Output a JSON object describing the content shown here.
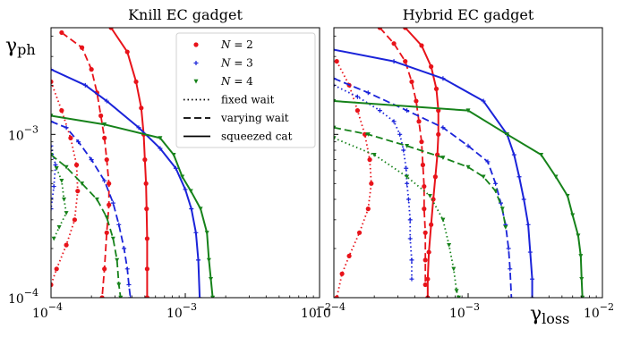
{
  "chart_data": [
    {
      "type": "line",
      "title": "Knill EC gadget",
      "xlabel": "",
      "ylabel": "γ",
      "ylabel_sub": "ph",
      "xscale": "log",
      "yscale": "log",
      "xlim": [
        0.0001,
        0.01
      ],
      "ylim": [
        0.0001,
        0.0045
      ],
      "x_ticks": [
        "10",
        "10",
        "10"
      ],
      "x_tick_exps": [
        "−4",
        "−3",
        "−2"
      ],
      "y_ticks": [
        "10",
        "10"
      ],
      "y_tick_exps": [
        "−4",
        "−3"
      ],
      "legend": {
        "placement": "top-right",
        "entries": [
          {
            "label_main": "N",
            "label_rest": " = 2",
            "color": "#e8131a",
            "marker": "dot"
          },
          {
            "label_main": "N",
            "label_rest": " = 3",
            "color": "#1a23d9",
            "marker": "plus"
          },
          {
            "label_main": "N",
            "label_rest": " = 4",
            "color": "#16821a",
            "marker": "star"
          },
          {
            "label": "fixed wait",
            "dash": "dotted"
          },
          {
            "label": "varying wait",
            "dash": "dashed"
          },
          {
            "label": "squeezed cat",
            "dash": "solid"
          }
        ]
      },
      "series": [
        {
          "N": 2,
          "style": "squeezed cat",
          "dash": "solid",
          "color": "#e8131a",
          "marker": "dot",
          "points": [
            [
              0.00028,
              0.0045
            ],
            [
              0.00037,
              0.0032
            ],
            [
              0.00043,
              0.0021
            ],
            [
              0.00047,
              0.00145
            ],
            [
              0.00049,
              0.001
            ],
            [
              0.0005,
              0.0007
            ],
            [
              0.00051,
              0.0005
            ],
            [
              0.000515,
              0.00035
            ],
            [
              0.00052,
              0.00023
            ],
            [
              0.00052,
              0.00015
            ],
            [
              0.00052,
              0.0001
            ]
          ]
        },
        {
          "N": 2,
          "style": "varying wait",
          "dash": "dashed",
          "color": "#e8131a",
          "marker": "dot",
          "points": [
            [
              0.00012,
              0.0042
            ],
            [
              0.00017,
              0.0034
            ],
            [
              0.0002,
              0.0025
            ],
            [
              0.00022,
              0.0018
            ],
            [
              0.000235,
              0.0013
            ],
            [
              0.00025,
              0.00095
            ],
            [
              0.00026,
              0.0007
            ],
            [
              0.00027,
              0.0005
            ],
            [
              0.00027,
              0.00037
            ],
            [
              0.00026,
              0.00025
            ],
            [
              0.00025,
              0.00015
            ],
            [
              0.00024,
              0.0001
            ]
          ]
        },
        {
          "N": 2,
          "style": "fixed wait",
          "dash": "dotted",
          "color": "#e8131a",
          "marker": "dot",
          "points": [
            [
              0.0001,
              0.0021
            ],
            [
              0.00012,
              0.0014
            ],
            [
              0.00014,
              0.00095
            ],
            [
              0.000155,
              0.00065
            ],
            [
              0.000158,
              0.00045
            ],
            [
              0.00015,
              0.0003
            ],
            [
              0.00013,
              0.00021
            ],
            [
              0.00011,
              0.00015
            ],
            [
              0.0001,
              0.00012
            ]
          ]
        },
        {
          "N": 3,
          "style": "squeezed cat",
          "dash": "solid",
          "color": "#1a23d9",
          "marker": "plus",
          "points": [
            [
              0.0001,
              0.0025
            ],
            [
              0.00018,
              0.002
            ],
            [
              0.00026,
              0.0016
            ],
            [
              0.00045,
              0.0011
            ],
            [
              0.00065,
              0.00082
            ],
            [
              0.00085,
              0.00062
            ],
            [
              0.001,
              0.00046
            ],
            [
              0.00111,
              0.00035
            ],
            [
              0.0012,
              0.00025
            ],
            [
              0.00125,
              0.00017
            ],
            [
              0.00128,
              0.0001
            ]
          ]
        },
        {
          "N": 3,
          "style": "varying wait",
          "dash": "dashed",
          "color": "#1a23d9",
          "marker": "plus",
          "points": [
            [
              0.0001,
              0.0012
            ],
            [
              0.00013,
              0.0011
            ],
            [
              0.00016,
              0.0009
            ],
            [
              0.0002,
              0.0007
            ],
            [
              0.00025,
              0.00052
            ],
            [
              0.00029,
              0.00038
            ],
            [
              0.00032,
              0.00028
            ],
            [
              0.00035,
              0.0002
            ],
            [
              0.00037,
              0.00015
            ],
            [
              0.00038,
              0.00012
            ],
            [
              0.00039,
              0.0001
            ]
          ]
        },
        {
          "N": 3,
          "style": "fixed wait",
          "dash": "dotted",
          "color": "#1a23d9",
          "marker": "plus",
          "points": [
            [
              0.0001,
              0.00085
            ],
            [
              0.000108,
              0.00065
            ],
            [
              0.000105,
              0.00048
            ],
            [
              0.0001,
              0.00035
            ]
          ]
        },
        {
          "N": 4,
          "style": "squeezed cat",
          "dash": "solid",
          "color": "#16821a",
          "marker": "star",
          "points": [
            [
              0.0001,
              0.0013
            ],
            [
              0.00025,
              0.00115
            ],
            [
              0.00065,
              0.00095
            ],
            [
              0.00082,
              0.00075
            ],
            [
              0.00095,
              0.00055
            ],
            [
              0.0011,
              0.00045
            ],
            [
              0.0013,
              0.00035
            ],
            [
              0.00145,
              0.00025
            ],
            [
              0.0015,
              0.00017
            ],
            [
              0.00155,
              0.00013
            ],
            [
              0.0016,
              0.0001
            ]
          ]
        },
        {
          "N": 4,
          "style": "varying wait",
          "dash": "dashed",
          "color": "#16821a",
          "marker": "star",
          "points": [
            [
              0.0001,
              0.00075
            ],
            [
              0.00013,
              0.00063
            ],
            [
              0.00017,
              0.0005
            ],
            [
              0.00022,
              0.0004
            ],
            [
              0.00026,
              0.00031
            ],
            [
              0.00029,
              0.00023
            ],
            [
              0.00031,
              0.00017
            ],
            [
              0.00032,
              0.00012
            ],
            [
              0.00033,
              0.0001
            ]
          ]
        },
        {
          "N": 4,
          "style": "fixed wait",
          "dash": "dotted",
          "color": "#16821a",
          "marker": "star",
          "points": [
            [
              0.00011,
              0.00062
            ],
            [
              0.00012,
              0.00052
            ],
            [
              0.000125,
              0.0004
            ],
            [
              0.00013,
              0.00033
            ],
            [
              0.000115,
              0.00027
            ],
            [
              0.000105,
              0.00023
            ]
          ]
        }
      ]
    },
    {
      "type": "line",
      "title": "Hybrid EC gadget",
      "xlabel": "γ",
      "xlabel_sub": "loss",
      "ylabel": "",
      "xscale": "log",
      "yscale": "log",
      "xlim": [
        0.0001,
        0.01
      ],
      "ylim": [
        0.0001,
        0.0045
      ],
      "x_ticks": [
        "10",
        "10",
        "10"
      ],
      "x_tick_exps": [
        "−4",
        "−3",
        "−2"
      ],
      "y_ticks": [],
      "series": [
        {
          "N": 2,
          "style": "squeezed cat",
          "dash": "solid",
          "color": "#e8131a",
          "marker": "dot",
          "points": [
            [
              0.00034,
              0.0045
            ],
            [
              0.00045,
              0.0035
            ],
            [
              0.00053,
              0.0026
            ],
            [
              0.00058,
              0.0019
            ],
            [
              0.0006,
              0.0014
            ],
            [
              0.0006,
              0.001
            ],
            [
              0.00059,
              0.00075
            ],
            [
              0.00057,
              0.00055
            ],
            [
              0.00055,
              0.0004
            ],
            [
              0.00053,
              0.00028
            ],
            [
              0.00051,
              0.00019
            ],
            [
              0.0005,
              0.00013
            ],
            [
              0.0005,
              0.0001
            ]
          ]
        },
        {
          "N": 2,
          "style": "varying wait",
          "dash": "dashed",
          "color": "#e8131a",
          "marker": "dot",
          "points": [
            [
              0.00022,
              0.0045
            ],
            [
              0.00028,
              0.0036
            ],
            [
              0.00034,
              0.0028
            ],
            [
              0.00038,
              0.0021
            ],
            [
              0.00041,
              0.0016
            ],
            [
              0.00043,
              0.0012
            ],
            [
              0.00045,
              0.0009
            ],
            [
              0.00046,
              0.00065
            ],
            [
              0.00047,
              0.00048
            ],
            [
              0.00047,
              0.00035
            ],
            [
              0.00048,
              0.00025
            ],
            [
              0.00048,
              0.00017
            ],
            [
              0.00048,
              0.00012
            ]
          ]
        },
        {
          "N": 2,
          "style": "fixed wait",
          "dash": "dotted",
          "color": "#e8131a",
          "marker": "dot",
          "points": [
            [
              0.000105,
              0.0028
            ],
            [
              0.00013,
              0.002
            ],
            [
              0.00015,
              0.0014
            ],
            [
              0.00017,
              0.001
            ],
            [
              0.000185,
              0.0007
            ],
            [
              0.00019,
              0.0005
            ],
            [
              0.00018,
              0.00035
            ],
            [
              0.000155,
              0.00025
            ],
            [
              0.00013,
              0.00018
            ],
            [
              0.000115,
              0.00014
            ],
            [
              0.000105,
              0.0001
            ]
          ]
        },
        {
          "N": 3,
          "style": "squeezed cat",
          "dash": "solid",
          "color": "#1a23d9",
          "marker": "plus",
          "points": [
            [
              0.0001,
              0.0033
            ],
            [
              0.00028,
              0.0028
            ],
            [
              0.00065,
              0.0022
            ],
            [
              0.0013,
              0.0016
            ],
            [
              0.00195,
              0.001
            ],
            [
              0.0022,
              0.00075
            ],
            [
              0.0024,
              0.00055
            ],
            [
              0.0026,
              0.0004
            ],
            [
              0.0028,
              0.00028
            ],
            [
              0.0029,
              0.00019
            ],
            [
              0.003,
              0.00013
            ],
            [
              0.003,
              0.0001
            ]
          ]
        },
        {
          "N": 3,
          "style": "varying wait",
          "dash": "dashed",
          "color": "#1a23d9",
          "marker": "plus",
          "points": [
            [
              0.0001,
              0.0022
            ],
            [
              0.00018,
              0.0018
            ],
            [
              0.00035,
              0.0014
            ],
            [
              0.00065,
              0.0011
            ],
            [
              0.001,
              0.00085
            ],
            [
              0.0014,
              0.00068
            ],
            [
              0.0016,
              0.0005
            ],
            [
              0.00175,
              0.00038
            ],
            [
              0.0019,
              0.00028
            ],
            [
              0.002,
              0.0002
            ],
            [
              0.00205,
              0.00015
            ],
            [
              0.0021,
              0.0001
            ]
          ]
        },
        {
          "N": 3,
          "style": "fixed wait",
          "dash": "dotted",
          "color": "#1a23d9",
          "marker": "plus",
          "points": [
            [
              0.0001,
              0.002
            ],
            [
              0.00015,
              0.0017
            ],
            [
              0.00022,
              0.0014
            ],
            [
              0.00028,
              0.0012
            ],
            [
              0.00031,
              0.001
            ],
            [
              0.00033,
              0.0008
            ],
            [
              0.000345,
              0.00062
            ],
            [
              0.00035,
              0.0005
            ],
            [
              0.00036,
              0.0004
            ],
            [
              0.00037,
              0.0003
            ],
            [
              0.00037,
              0.00023
            ],
            [
              0.00038,
              0.00017
            ],
            [
              0.00038,
              0.00013
            ]
          ]
        },
        {
          "N": 4,
          "style": "squeezed cat",
          "dash": "solid",
          "color": "#16821a",
          "marker": "star",
          "points": [
            [
              0.0001,
              0.0016
            ],
            [
              0.001,
              0.0014
            ],
            [
              0.00195,
              0.001
            ],
            [
              0.0035,
              0.00075
            ],
            [
              0.0045,
              0.00055
            ],
            [
              0.0055,
              0.00042
            ],
            [
              0.006,
              0.00032
            ],
            [
              0.0066,
              0.00024
            ],
            [
              0.0069,
              0.00018
            ],
            [
              0.007,
              0.00013
            ],
            [
              0.0071,
              0.0001
            ]
          ]
        },
        {
          "N": 4,
          "style": "varying wait",
          "dash": "dashed",
          "color": "#16821a",
          "marker": "star",
          "points": [
            [
              0.0001,
              0.0011
            ],
            [
              0.00018,
              0.001
            ],
            [
              0.00035,
              0.00085
            ],
            [
              0.00065,
              0.00072
            ],
            [
              0.001,
              0.00063
            ],
            [
              0.0013,
              0.00055
            ],
            [
              0.0016,
              0.00045
            ],
            [
              0.0018,
              0.00035
            ],
            [
              0.0019,
              0.00027
            ]
          ]
        },
        {
          "N": 4,
          "style": "fixed wait",
          "dash": "dotted",
          "color": "#16821a",
          "marker": "star",
          "points": [
            [
              0.0001,
              0.00095
            ],
            [
              0.0002,
              0.00075
            ],
            [
              0.00035,
              0.00055
            ],
            [
              0.00052,
              0.00042
            ],
            [
              0.00065,
              0.0003
            ],
            [
              0.00072,
              0.00021
            ],
            [
              0.00078,
              0.00015
            ],
            [
              0.00082,
              0.00011
            ],
            [
              0.00085,
              0.0001
            ]
          ]
        }
      ]
    }
  ]
}
